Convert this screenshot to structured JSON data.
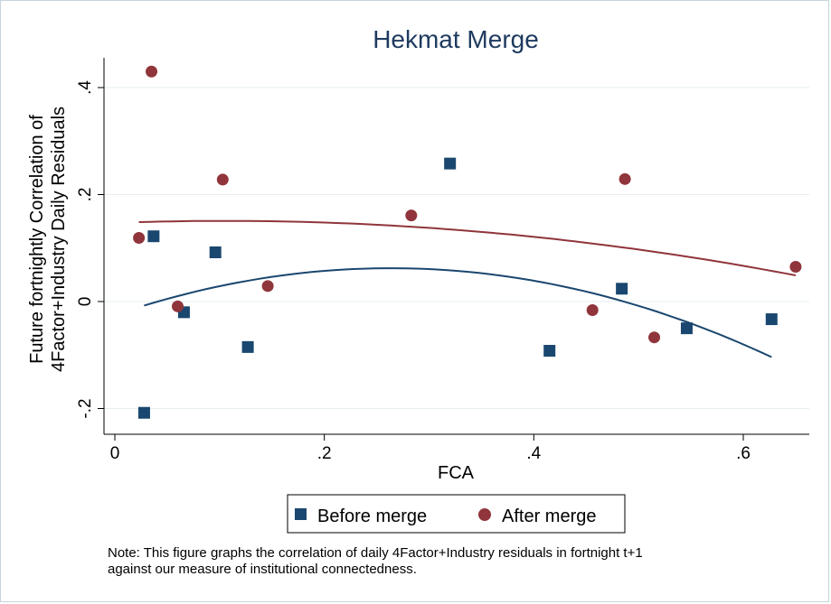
{
  "chart_data": {
    "type": "scatter",
    "title": "Hekmat Merge",
    "xlabel": "FCA",
    "ylabel_line1": "Future fortnightly Correlation of",
    "ylabel_line2": "4Factor+Industry Daily Residuals",
    "xlim": [
      0,
      0.66
    ],
    "ylim": [
      -0.22,
      0.45
    ],
    "xticks": [
      0,
      0.2,
      0.4,
      0.6
    ],
    "xtick_labels": [
      "0",
      ".2",
      ".4",
      ".6"
    ],
    "yticks": [
      -0.2,
      0,
      0.2,
      0.4
    ],
    "ytick_labels": [
      "-.2",
      "0",
      ".2",
      ".4"
    ],
    "grid": "horizontal",
    "legend_position": "bottom",
    "series": [
      {
        "name": "Before merge",
        "marker": "square",
        "color": "#1a476f",
        "points": [
          [
            0.028,
            -0.208
          ],
          [
            0.037,
            0.122
          ],
          [
            0.066,
            -0.02
          ],
          [
            0.096,
            0.092
          ],
          [
            0.127,
            -0.085
          ],
          [
            0.32,
            0.258
          ],
          [
            0.415,
            -0.092
          ],
          [
            0.484,
            0.024
          ],
          [
            0.546,
            -0.05
          ],
          [
            0.627,
            -0.033
          ]
        ],
        "fit": {
          "x_range": [
            0.028,
            0.627
          ],
          "coefficients": [
            -0.025,
            0.663,
            -1.258
          ]
        }
      },
      {
        "name": "After merge",
        "marker": "circle",
        "color": "#90353b",
        "points": [
          [
            0.023,
            0.119
          ],
          [
            0.035,
            0.43
          ],
          [
            0.06,
            -0.009
          ],
          [
            0.103,
            0.228
          ],
          [
            0.146,
            0.029
          ],
          [
            0.283,
            0.161
          ],
          [
            0.456,
            -0.016
          ],
          [
            0.487,
            0.229
          ],
          [
            0.515,
            -0.067
          ],
          [
            0.65,
            0.065
          ]
        ],
        "fit": {
          "x_range": [
            0.023,
            0.65
          ],
          "coefficients": [
            0.147,
            0.072,
            -0.343
          ]
        }
      }
    ]
  },
  "note": "Note: This figure graphs the correlation of daily 4Factor+Industry residuals in fortnight t+1\n against  our measure of institutional connectedness."
}
